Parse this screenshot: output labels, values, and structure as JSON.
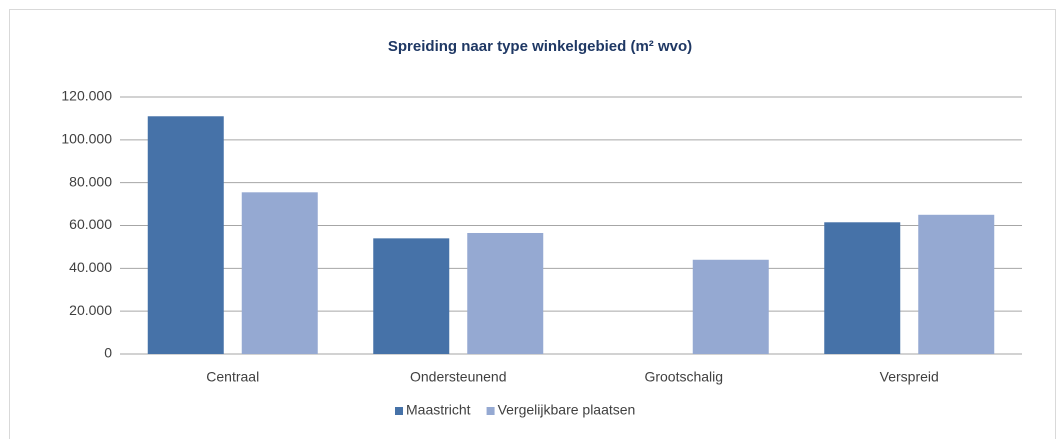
{
  "chart_data": {
    "type": "bar",
    "title": "Spreiding naar type winkelgebied  (m² wvo)",
    "categories": [
      "Centraal",
      "Ondersteunend",
      "Grootschalig",
      "Verspreid"
    ],
    "series": [
      {
        "name": "Maastricht",
        "color": "#4672a8",
        "values": [
          111000,
          54000,
          0,
          61500
        ]
      },
      {
        "name": "Vergelijkbare plaatsen",
        "color": "#95a9d2",
        "values": [
          75500,
          56500,
          44000,
          65000
        ]
      }
    ],
    "ylim": [
      0,
      120000
    ],
    "yticks": [
      0,
      {
        "value": 20000,
        "label": "20.000"
      },
      {
        "value": 40000,
        "label": "40.000"
      },
      {
        "value": 60000,
        "label": "60.000"
      },
      {
        "value": 80000,
        "label": "80.000"
      },
      {
        "value": 100000,
        "label": "100.000"
      },
      {
        "value": 120000,
        "label": "120.000"
      }
    ],
    "grid": true,
    "legend": "bottom"
  }
}
